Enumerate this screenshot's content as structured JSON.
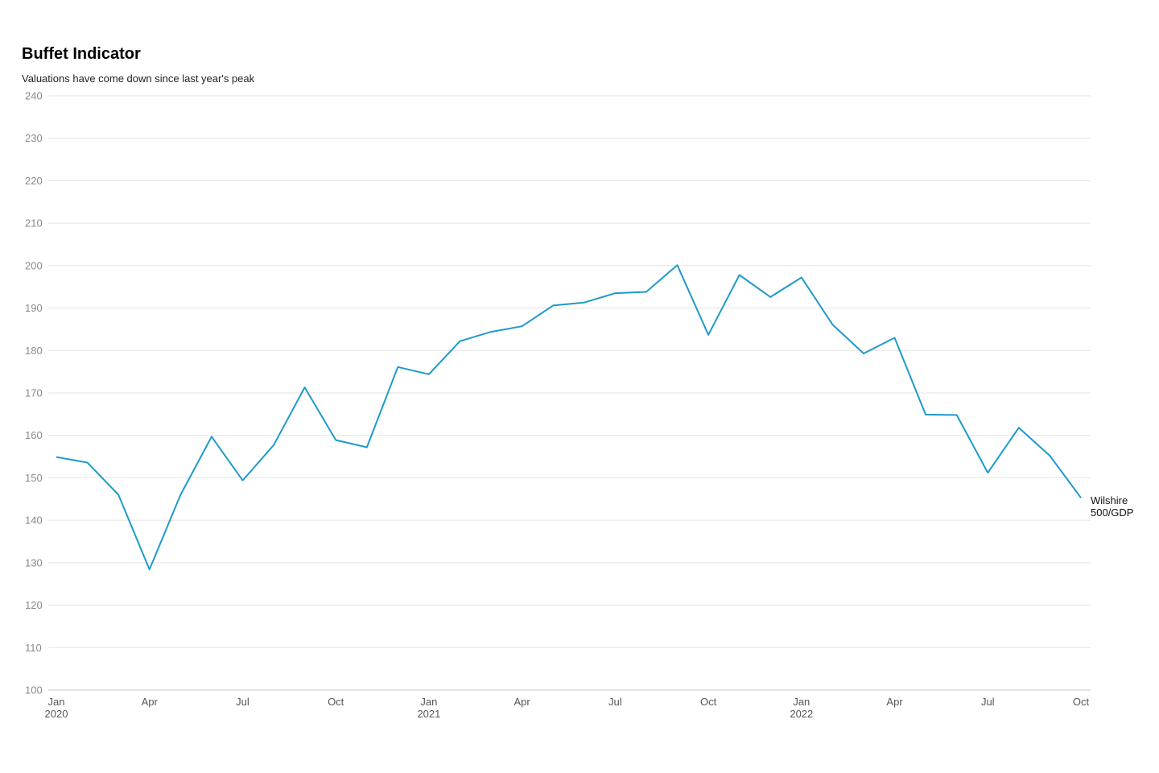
{
  "chart_data": {
    "type": "line",
    "title": "Buffet Indicator",
    "subtitle": "Valuations have come down since last year's peak",
    "ylim": [
      100,
      240
    ],
    "yticks": [
      100,
      110,
      120,
      130,
      140,
      150,
      160,
      170,
      180,
      190,
      200,
      210,
      220,
      230,
      240
    ],
    "grid": true,
    "x": [
      "2020-01",
      "2020-02",
      "2020-03",
      "2020-04",
      "2020-05",
      "2020-06",
      "2020-07",
      "2020-08",
      "2020-09",
      "2020-10",
      "2020-11",
      "2020-12",
      "2021-01",
      "2021-02",
      "2021-03",
      "2021-04",
      "2021-05",
      "2021-06",
      "2021-07",
      "2021-08",
      "2021-09",
      "2021-10",
      "2021-11",
      "2021-12",
      "2022-01",
      "2022-02",
      "2022-03",
      "2022-04",
      "2022-05",
      "2022-06",
      "2022-07",
      "2022-08",
      "2022-09",
      "2022-10"
    ],
    "xticks": [
      {
        "x": "2020-01",
        "label": "Jan",
        "year": "2020"
      },
      {
        "x": "2020-04",
        "label": "Apr"
      },
      {
        "x": "2020-07",
        "label": "Jul"
      },
      {
        "x": "2020-10",
        "label": "Oct"
      },
      {
        "x": "2021-01",
        "label": "Jan",
        "year": "2021"
      },
      {
        "x": "2021-04",
        "label": "Apr"
      },
      {
        "x": "2021-07",
        "label": "Jul"
      },
      {
        "x": "2021-10",
        "label": "Oct"
      },
      {
        "x": "2022-01",
        "label": "Jan",
        "year": "2022"
      },
      {
        "x": "2022-04",
        "label": "Apr"
      },
      {
        "x": "2022-07",
        "label": "Jul"
      },
      {
        "x": "2022-10",
        "label": "Oct"
      }
    ],
    "series": [
      {
        "name": "Wilshire 500/GDP",
        "label_lines": [
          "Wilshire",
          "500/GDP"
        ],
        "color": "#1f9ac9",
        "values": [
          154.9,
          153.6,
          146.0,
          128.4,
          146.0,
          159.7,
          149.4,
          157.7,
          171.3,
          158.9,
          157.2,
          176.1,
          174.4,
          182.2,
          184.4,
          185.7,
          190.6,
          191.3,
          193.5,
          193.8,
          200.1,
          183.7,
          197.8,
          192.6,
          197.2,
          186.1,
          179.3,
          183.0,
          164.9,
          164.8,
          151.2,
          161.8,
          155.2,
          145.3
        ]
      }
    ]
  }
}
